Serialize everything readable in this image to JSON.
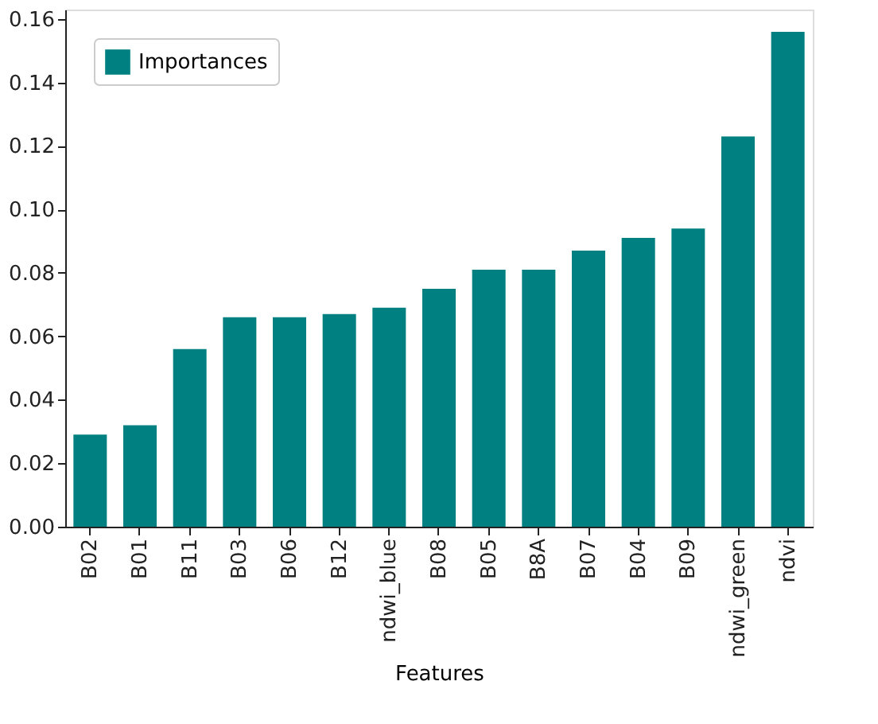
{
  "chart_data": {
    "type": "bar",
    "xlabel": "Features",
    "categories": [
      "B02",
      "B01",
      "B11",
      "B03",
      "B06",
      "B12",
      "ndwi_blue",
      "B08",
      "B05",
      "B8A",
      "B07",
      "B04",
      "B09",
      "ndwi_green",
      "ndvi"
    ],
    "series": [
      {
        "name": "Importances",
        "color": "#008080",
        "values": [
          0.029,
          0.032,
          0.056,
          0.066,
          0.066,
          0.067,
          0.069,
          0.075,
          0.081,
          0.081,
          0.087,
          0.091,
          0.094,
          0.123,
          0.156
        ]
      }
    ],
    "ylim": [
      0,
      0.163
    ],
    "yticks": [
      {
        "value": 0,
        "label": "0.00"
      },
      {
        "value": 0.02,
        "label": "0.02"
      },
      {
        "value": 0.04,
        "label": "0.04"
      },
      {
        "value": 0.06,
        "label": "0.06"
      },
      {
        "value": 0.08,
        "label": "0.08"
      },
      {
        "value": 0.1,
        "label": "0.10"
      },
      {
        "value": 0.12,
        "label": "0.12"
      },
      {
        "value": 0.14,
        "label": "0.14"
      },
      {
        "value": 0.16,
        "label": "0.16"
      }
    ],
    "grid": false,
    "legend": "top left"
  }
}
